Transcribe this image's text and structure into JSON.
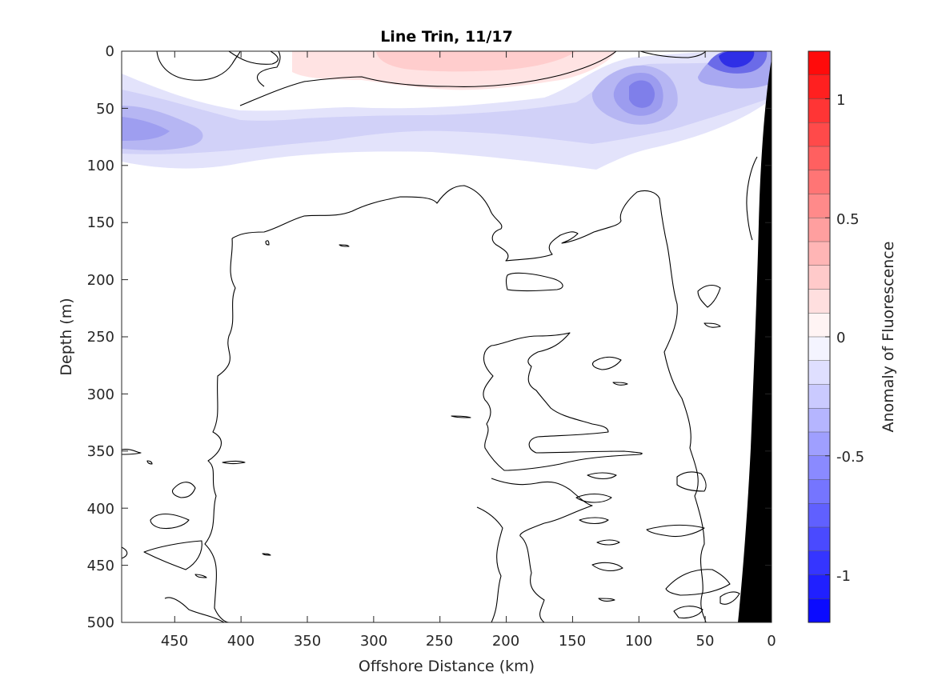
{
  "chart_data": {
    "type": "heatmap",
    "title": "Line Trin, 11/17",
    "xlabel": "Offshore Distance (km)",
    "ylabel": "Depth (m)",
    "xlim": [
      490,
      0
    ],
    "ylim": [
      0,
      500
    ],
    "x_reversed": true,
    "y_reversed": true,
    "x_ticks": [
      450,
      400,
      350,
      300,
      250,
      200,
      150,
      100,
      50,
      0
    ],
    "y_ticks": [
      0,
      50,
      100,
      150,
      200,
      250,
      300,
      350,
      400,
      450,
      500
    ],
    "colorbar": {
      "label": "Anomaly of Fluorescence",
      "range": [
        -1.2,
        1.2
      ],
      "ticks": [
        1,
        0.5,
        0,
        -0.5,
        -1
      ],
      "tick_labels": [
        "1",
        "0.5",
        "0",
        "-0.5",
        "-1"
      ],
      "levels": 24,
      "low_color": "#0000ff",
      "mid_color": "#ffffff",
      "high_color": "#ff0000"
    },
    "contour_levels": [
      0
    ],
    "features": [
      {
        "kind": "positive_anomaly",
        "value": 0.15,
        "x_range": [
          360,
          130
        ],
        "depth_range": [
          0,
          25
        ]
      },
      {
        "kind": "negative_anomaly",
        "value": -0.3,
        "x_range": [
          490,
          0
        ],
        "depth_range": [
          20,
          100
        ]
      },
      {
        "kind": "negative_anomaly_core",
        "value": -0.6,
        "x": 470,
        "depth": 70
      },
      {
        "kind": "negative_anomaly_core",
        "value": -0.65,
        "x": 100,
        "depth": 35
      },
      {
        "kind": "negative_anomaly_core",
        "value": -0.9,
        "x": 25,
        "depth": 8
      },
      {
        "kind": "bathymetry_mask",
        "color": "#000000",
        "surface_x": 0,
        "bottom_x": 30
      }
    ]
  }
}
